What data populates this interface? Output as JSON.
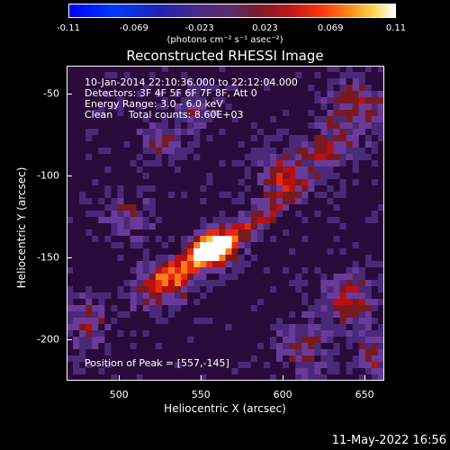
{
  "colorbar": {
    "ticks": [
      "-0.11",
      "-0.069",
      "-0.023",
      "0.023",
      "0.069",
      "0.11"
    ],
    "units": "(photons cm⁻² s⁻¹ asec⁻²)",
    "min": -0.11,
    "max": 0.11
  },
  "plot": {
    "title": "Reconstructed RHESSI Image",
    "annotation_lines": [
      "10-Jan-2014 22:10:36.000 to 22:12:04.000",
      "Detectors: 3F 4F 5F 6F 7F 8F, Att 0",
      "Energy Range: 3.0 - 6.0 keV",
      "Clean     Total counts: 8.60E+03"
    ],
    "peak_text": "Position of Peak = [557,-145]",
    "xlabel": "Heliocentric X (arcsec)",
    "ylabel": "Heliocentric Y (arcsec)",
    "xticks": [
      "500",
      "550",
      "600",
      "650"
    ],
    "yticks": [
      "-50",
      "-100",
      "-150",
      "-200"
    ],
    "xrange": [
      468,
      662
    ],
    "yrange": [
      -225,
      -33
    ],
    "peak": {
      "x": 557,
      "y": -145
    },
    "colormap": [
      "#2a0a3a",
      "#4a2a78",
      "#6a3a9a",
      "#7a1a20",
      "#b81010",
      "#e82a10",
      "#ff7a18",
      "#ffc040",
      "#ffffff"
    ]
  },
  "footer": {
    "date": "11-May-2022 16:56"
  }
}
